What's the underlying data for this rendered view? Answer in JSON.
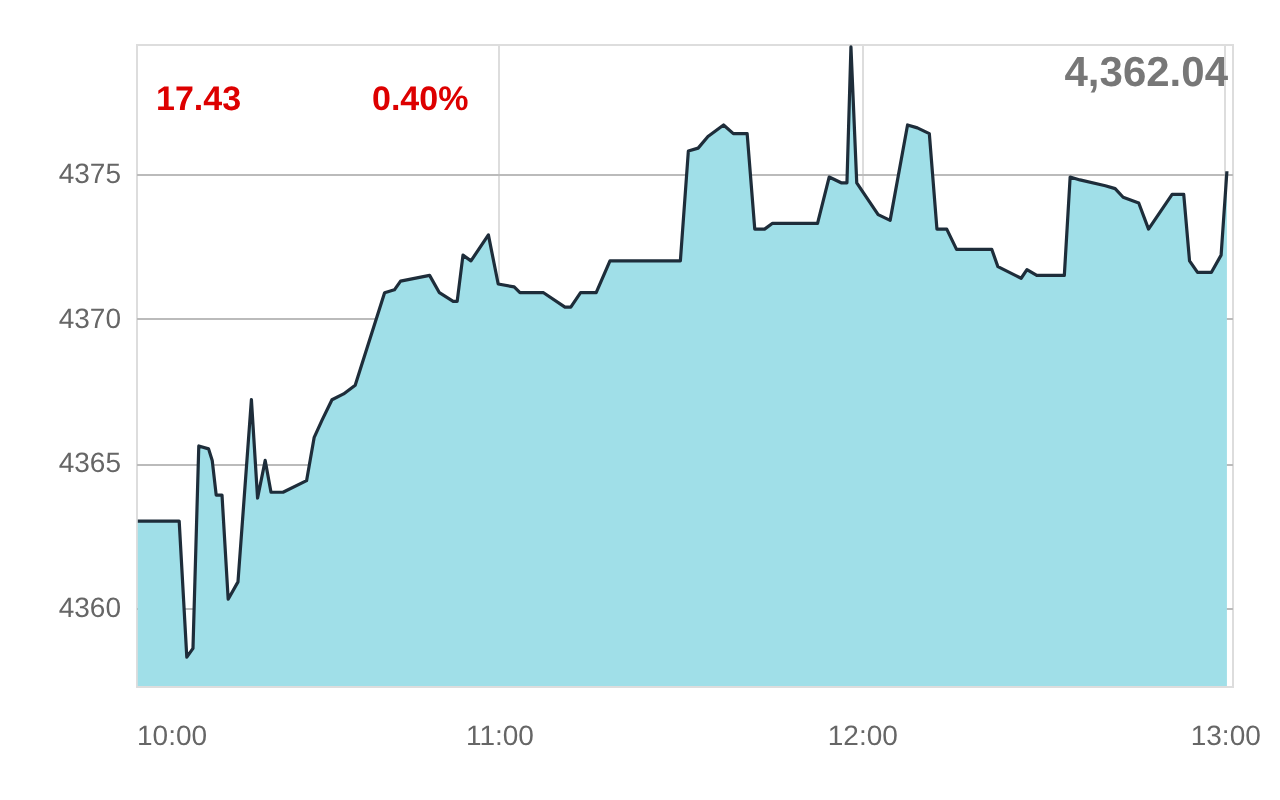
{
  "chart_data": {
    "type": "area",
    "x": [
      10.005,
      10.119,
      10.14,
      10.157,
      10.173,
      10.2,
      10.21,
      10.221,
      10.237,
      10.254,
      10.281,
      10.318,
      10.335,
      10.356,
      10.372,
      10.405,
      10.47,
      10.491,
      10.513,
      10.54,
      10.572,
      10.604,
      10.685,
      10.712,
      10.729,
      10.809,
      10.836,
      10.874,
      10.885,
      10.901,
      10.923,
      10.971,
      10.998,
      11.042,
      11.058,
      11.123,
      11.182,
      11.198,
      11.225,
      11.268,
      11.306,
      11.5,
      11.522,
      11.549,
      11.576,
      11.619,
      11.646,
      11.684,
      11.705,
      11.732,
      11.754,
      11.878,
      11.91,
      11.943,
      11.959,
      11.97,
      11.986,
      12.018,
      12.045,
      12.078,
      12.126,
      12.153,
      12.186,
      12.207,
      12.234,
      12.261,
      12.358,
      12.375,
      12.423,
      12.439,
      12.455,
      12.482,
      12.558,
      12.574,
      12.601,
      12.671,
      12.698,
      12.72,
      12.763,
      12.79,
      12.855,
      12.887,
      12.903,
      12.925,
      12.963,
      12.99,
      13.006
    ],
    "series": [
      {
        "color": "#a0dfe8",
        "values": [
          4363.0,
          4363.0,
          4358.3,
          4358.6,
          4365.6,
          4365.5,
          4365.1,
          4363.9,
          4363.9,
          4360.3,
          4360.9,
          4367.2,
          4363.8,
          4365.1,
          4364.0,
          4364.0,
          4364.4,
          4365.9,
          4366.5,
          4367.2,
          4367.4,
          4367.7,
          4370.9,
          4371.0,
          4371.3,
          4371.5,
          4370.9,
          4370.6,
          4370.6,
          4372.2,
          4372.0,
          4372.9,
          4371.2,
          4371.1,
          4370.9,
          4370.9,
          4370.4,
          4370.4,
          4370.9,
          4370.9,
          4372.0,
          4372.0,
          4375.8,
          4375.9,
          4376.3,
          4376.7,
          4376.4,
          4376.4,
          4373.1,
          4373.1,
          4373.3,
          4373.3,
          4374.9,
          4374.7,
          4374.7,
          4379.4,
          4374.7,
          4374.1,
          4373.6,
          4373.4,
          4376.7,
          4376.6,
          4376.4,
          4373.1,
          4373.1,
          4372.4,
          4372.4,
          4371.8,
          4371.5,
          4371.4,
          4371.7,
          4371.5,
          4371.5,
          4374.9,
          4374.8,
          4374.6,
          4374.5,
          4374.2,
          4374.0,
          4373.1,
          4374.3,
          4374.3,
          4372.0,
          4371.6,
          4371.6,
          4372.2,
          4375.1
        ]
      }
    ],
    "xlim": [
      10,
      13.02
    ],
    "xticks": [
      {
        "value": 10,
        "label": "10:00"
      },
      {
        "value": 11,
        "label": "11:00"
      },
      {
        "value": 12,
        "label": "12:00"
      },
      {
        "value": 13,
        "label": "13:00"
      }
    ],
    "ylim": [
      4357.3,
      4379.5
    ],
    "yticks": [
      4360,
      4365,
      4370,
      4375
    ],
    "grid": true,
    "annotations": [
      "17.43",
      "0.40%",
      "4,362.04"
    ]
  }
}
